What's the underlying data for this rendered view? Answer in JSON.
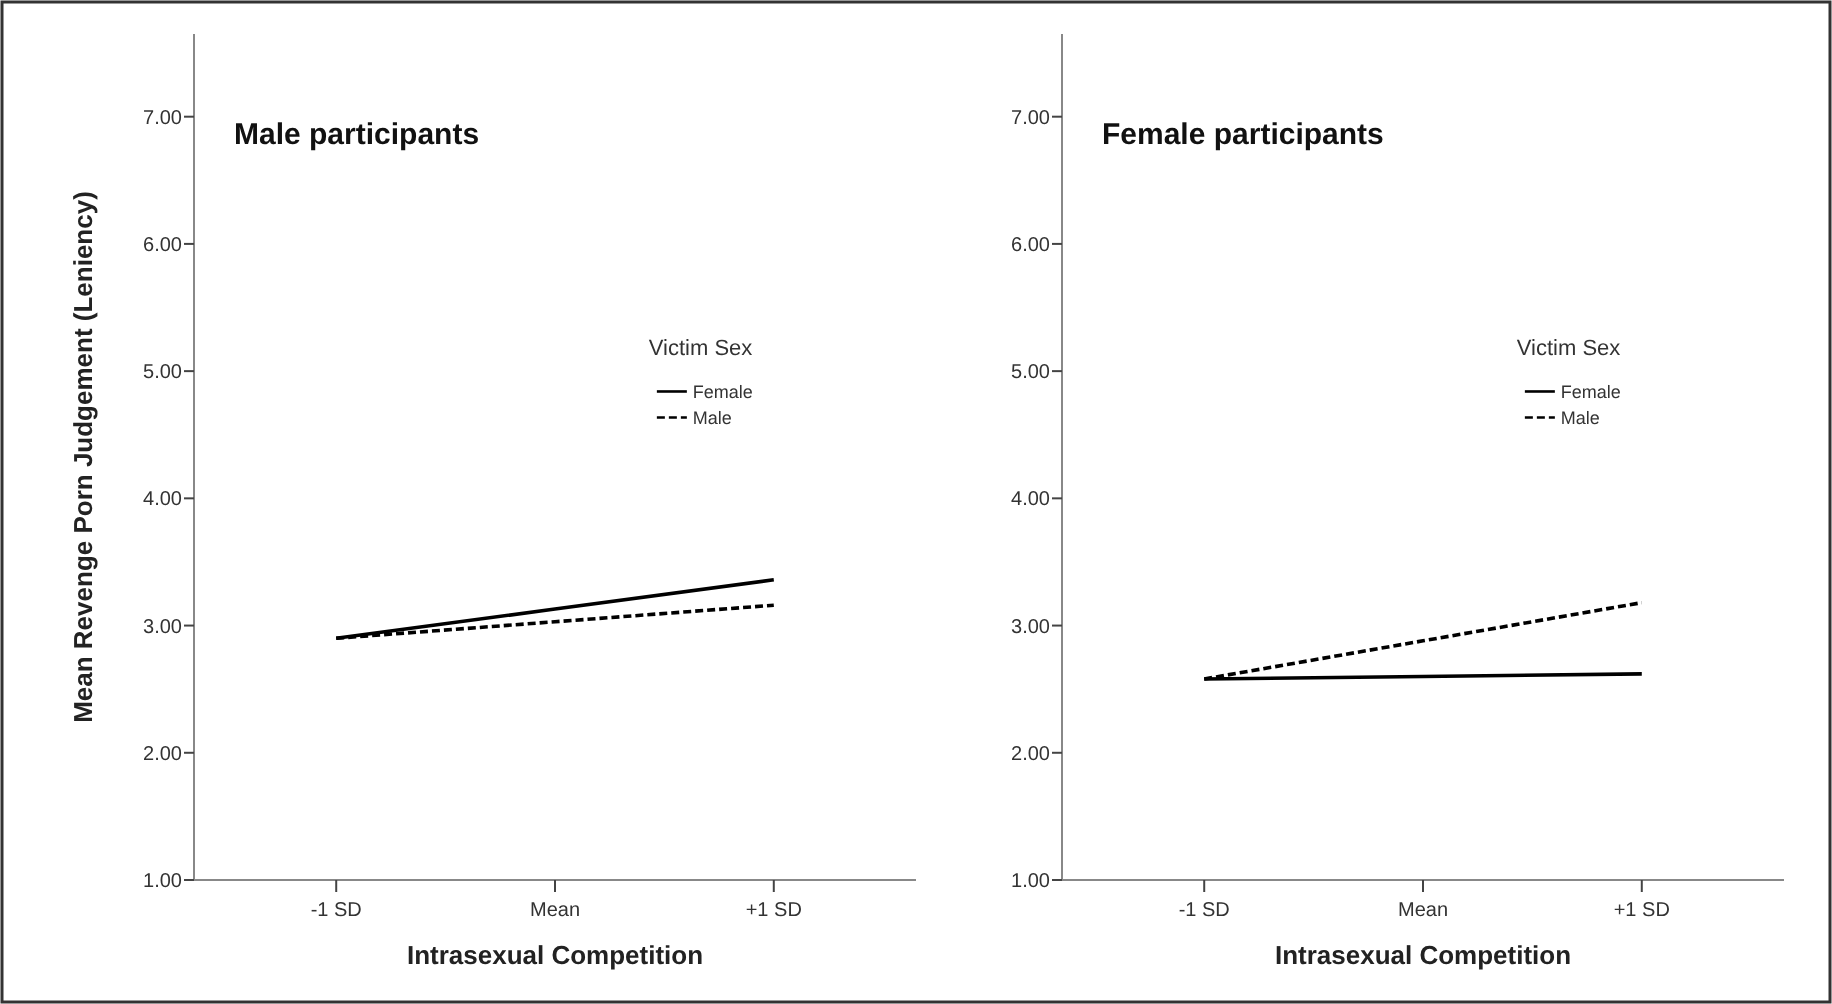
{
  "chart_data": [
    {
      "type": "line",
      "title": "Male participants",
      "xlabel": "Intrasexual Competition",
      "ylabel": "Mean Revenge Porn Judgement (Leniency)",
      "legend_title": "Victim Sex",
      "legend": "right",
      "categories": [
        "-1 SD",
        "Mean",
        "+1 SD"
      ],
      "ylim": [
        1,
        7.65
      ],
      "yticks": [
        {
          "value": 1,
          "label": "1.00"
        },
        {
          "value": 2,
          "label": "2.00"
        },
        {
          "value": 3,
          "label": "3.00"
        },
        {
          "value": 4,
          "label": "4.00"
        },
        {
          "value": 5,
          "label": "5.00"
        },
        {
          "value": 6,
          "label": "6.00"
        },
        {
          "value": 7,
          "label": "7.00"
        }
      ],
      "series": [
        {
          "name": "Female",
          "color": "#000000",
          "line_style": "solid",
          "values": [
            2.9,
            3.13,
            3.36
          ]
        },
        {
          "name": "Male",
          "color": "#000000",
          "line_style": "dashed",
          "values": [
            2.9,
            3.03,
            3.16
          ]
        }
      ]
    },
    {
      "type": "line",
      "title": "Female participants",
      "xlabel": "Intrasexual Competition",
      "legend_title": "Victim Sex",
      "legend": "right",
      "categories": [
        "-1 SD",
        "Mean",
        "+1 SD"
      ],
      "ylim": [
        1,
        7.65
      ],
      "yticks": [
        {
          "value": 1,
          "label": "1.00"
        },
        {
          "value": 2,
          "label": "2.00"
        },
        {
          "value": 3,
          "label": "3.00"
        },
        {
          "value": 4,
          "label": "4.00"
        },
        {
          "value": 5,
          "label": "5.00"
        },
        {
          "value": 6,
          "label": "6.00"
        },
        {
          "value": 7,
          "label": "7.00"
        }
      ],
      "series": [
        {
          "name": "Female",
          "color": "#000000",
          "line_style": "solid",
          "values": [
            2.58,
            2.6,
            2.62
          ]
        },
        {
          "name": "Male",
          "color": "#000000",
          "line_style": "dashed",
          "values": [
            2.58,
            2.88,
            3.18
          ]
        }
      ]
    }
  ]
}
